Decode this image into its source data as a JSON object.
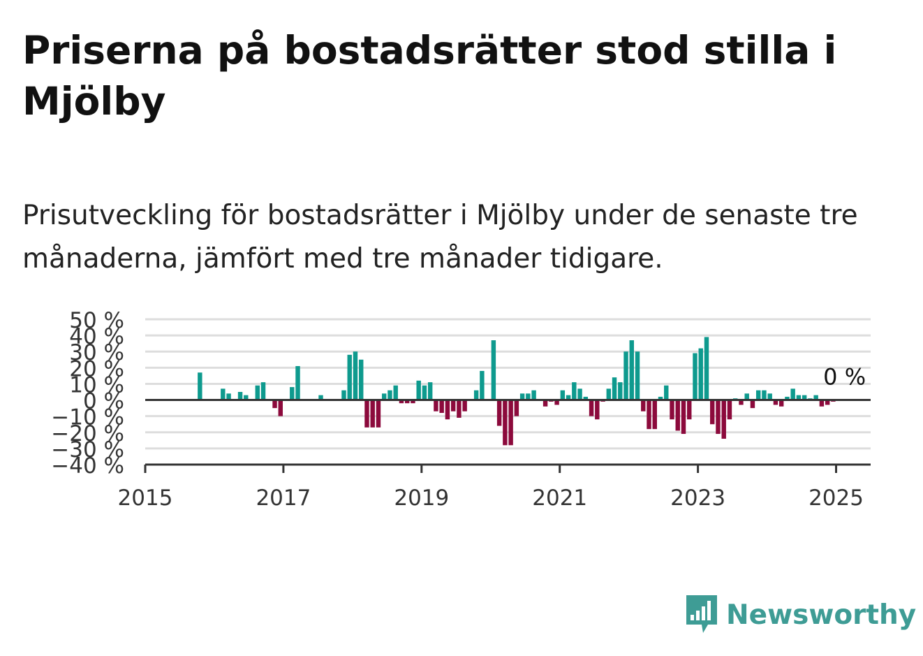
{
  "title": "Priserna på bostadsrätter stod stilla i Mjölby",
  "subtitle": "Prisutveckling för bostadsrätter i Mjölby under de senaste tre månaderna, jämfört med tre månader tidigare.",
  "brand": {
    "name": "Newsworthy",
    "icon": "newsworthy-logo-icon",
    "color": "#3e9c95"
  },
  "colors": {
    "positive": "#0e9a8e",
    "negative": "#8c0a3c",
    "grid": "#dddddd",
    "axis": "#333333"
  },
  "chart_data": {
    "type": "bar",
    "title": "",
    "xlabel": "",
    "ylabel": "",
    "ylim": [
      -40,
      50
    ],
    "xlim": [
      2015,
      2025.5
    ],
    "y_ticks": [
      50,
      40,
      30,
      20,
      10,
      0,
      -10,
      -20,
      -30,
      -40
    ],
    "y_tick_labels": [
      "50 %",
      "40 %",
      "30 %",
      "20 %",
      "10 %",
      "0 %",
      "−10 %",
      "−20 %",
      "−30 %",
      "−40 %"
    ],
    "x_ticks": [
      2015,
      2017,
      2019,
      2021,
      2023,
      2025
    ],
    "x_tick_labels": [
      "2015",
      "2017",
      "2019",
      "2021",
      "2023",
      "2025"
    ],
    "grid": true,
    "end_label": "0 %",
    "series": [
      {
        "start": "2015-01",
        "frequency": "monthly",
        "values": [
          0,
          0,
          0,
          0,
          0,
          0,
          0,
          0,
          0,
          17,
          0,
          0,
          0,
          7,
          4,
          0,
          5,
          3,
          0,
          9,
          11,
          0,
          -5,
          -10,
          0,
          8,
          21,
          0,
          0,
          0,
          3,
          0,
          0,
          0,
          6,
          28,
          30,
          25,
          -17,
          -17,
          -17,
          4,
          6,
          9,
          -2,
          -2,
          -2,
          12,
          9,
          11,
          -7,
          -8,
          -12,
          -7,
          -11,
          -7,
          0,
          6,
          18,
          0,
          37,
          -16,
          -28,
          -28,
          -10,
          4,
          4,
          6,
          0,
          -4,
          -1,
          -3,
          6,
          3,
          11,
          7,
          2,
          -10,
          -12,
          -1,
          7,
          14,
          11,
          30,
          37,
          30,
          -7,
          -18,
          -18,
          2,
          9,
          -12,
          -19,
          -21,
          -12,
          29,
          32,
          39,
          -15,
          -21,
          -24,
          -12,
          1,
          -3,
          4,
          -5,
          6,
          6,
          4,
          -3,
          -4,
          2,
          7,
          3,
          3,
          1,
          3,
          -4,
          -3,
          -1,
          0
        ]
      }
    ]
  }
}
